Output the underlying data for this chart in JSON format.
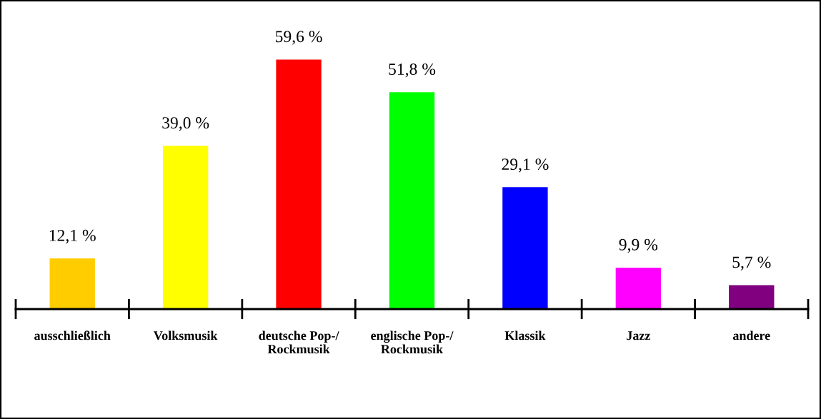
{
  "chart_data": {
    "type": "bar",
    "categories": [
      "ausschließlich",
      "Volksmusik",
      "deutsche Pop-/\nRockmusik",
      "englische Pop-/\nRockmusik",
      "Klassik",
      "Jazz",
      "andere"
    ],
    "values": [
      12.1,
      39.0,
      59.6,
      51.8,
      29.1,
      9.9,
      5.7
    ],
    "colors": [
      "#ffcc00",
      "#ffff00",
      "#ff0000",
      "#00ff00",
      "#0000ff",
      "#ff00ff",
      "#800080"
    ],
    "value_labels": [
      "12,1 %",
      "39,0 %",
      "59,6 %",
      "51,8 %",
      "29,1 %",
      "9,9 %",
      "5,7 %"
    ],
    "grid": false,
    "legend": false
  }
}
